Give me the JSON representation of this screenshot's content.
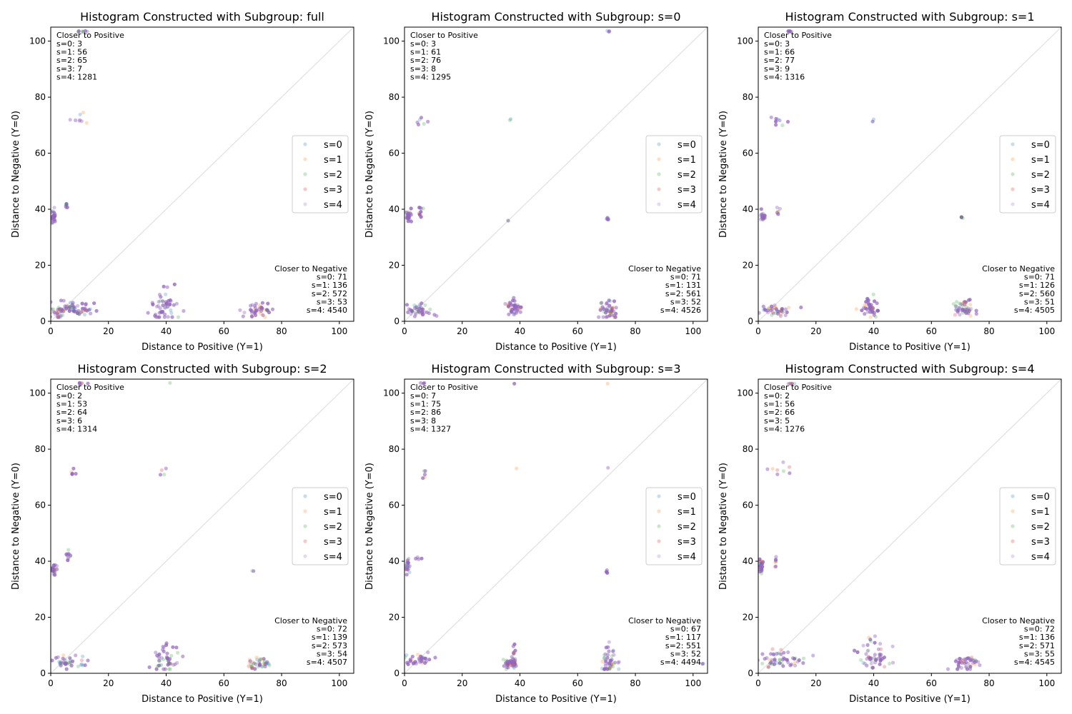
{
  "colors": {
    "s0": "#1f77b4",
    "s1": "#ff7f0e",
    "s2": "#2ca02c",
    "s3": "#d62728",
    "s4": "#9467bd",
    "diagonal": "#e0e0e0"
  },
  "chart_data": [
    {
      "type": "scatter",
      "title": "Histogram Constructed with Subgroup: full",
      "xlabel": "Distance to Positive (Y=1)",
      "ylabel": "Distance to Negative (Y=0)",
      "xlim": [
        0,
        105
      ],
      "ylim": [
        0,
        105
      ],
      "xticks": [
        0,
        20,
        40,
        60,
        80,
        100
      ],
      "yticks": [
        0,
        20,
        40,
        60,
        80,
        100
      ],
      "legend": [
        "s=0",
        "s=1",
        "s=2",
        "s=3",
        "s=4"
      ],
      "legend_position": "center-right",
      "diagonal": true,
      "closer_to_positive": {
        "heading": "Closer to Positive",
        "lines": [
          "s=0: 3",
          "s=1: 56",
          "s=2: 65",
          "s=3: 7",
          "s=4: 1281"
        ]
      },
      "closer_to_negative": {
        "heading": "Closer to Negative",
        "lines": [
          "s=0: 71",
          "s=1: 136",
          "s=2: 572",
          "s=3: 53",
          "s=4: 4540"
        ]
      },
      "clusters": [
        {
          "x": 1,
          "y": 37.5,
          "sx": 0.4,
          "sy": 1.2,
          "n": 28
        },
        {
          "x": 5.5,
          "y": 41,
          "sx": 0.2,
          "sy": 1.2,
          "n": 8
        },
        {
          "x": 9.5,
          "y": 72,
          "sx": 2,
          "sy": 1,
          "n": 8
        },
        {
          "x": 10.5,
          "y": 103.5,
          "sx": 1.5,
          "sy": 0.1,
          "n": 8
        },
        {
          "x": 8,
          "y": 4.5,
          "sx": 4,
          "sy": 1.3,
          "n": 60
        },
        {
          "x": 2,
          "y": 3,
          "sx": 1.5,
          "sy": 1,
          "n": 25
        },
        {
          "x": 39.5,
          "y": 5,
          "sx": 2.5,
          "sy": 3,
          "n": 50
        },
        {
          "x": 71.5,
          "y": 4,
          "sx": 2.5,
          "sy": 1.5,
          "n": 40
        }
      ]
    },
    {
      "type": "scatter",
      "title": "Histogram Constructed with Subgroup: s=0",
      "xlabel": "Distance to Positive (Y=1)",
      "ylabel": "Distance to Negative (Y=0)",
      "xlim": [
        0,
        105
      ],
      "ylim": [
        0,
        105
      ],
      "xticks": [
        0,
        20,
        40,
        60,
        80,
        100
      ],
      "yticks": [
        0,
        20,
        40,
        60,
        80,
        100
      ],
      "legend": [
        "s=0",
        "s=1",
        "s=2",
        "s=3",
        "s=4"
      ],
      "legend_position": "center-right",
      "diagonal": true,
      "closer_to_positive": {
        "heading": "Closer to Positive",
        "lines": [
          "s=0: 3",
          "s=1: 61",
          "s=2: 76",
          "s=3: 8",
          "s=4: 1295"
        ]
      },
      "closer_to_negative": {
        "heading": "Closer to Negative",
        "lines": [
          "s=0: 71",
          "s=1: 131",
          "s=2: 561",
          "s=3: 52",
          "s=4: 4526"
        ]
      },
      "clusters": [
        {
          "x": 1.5,
          "y": 37.5,
          "sx": 0.5,
          "sy": 1,
          "n": 25
        },
        {
          "x": 5.5,
          "y": 39.5,
          "sx": 0.5,
          "sy": 1.5,
          "n": 10
        },
        {
          "x": 6,
          "y": 71,
          "sx": 1,
          "sy": 1,
          "n": 6
        },
        {
          "x": 70.5,
          "y": 103.5,
          "sx": 0.3,
          "sy": 0.1,
          "n": 3
        },
        {
          "x": 70.5,
          "y": 36.5,
          "sx": 0.3,
          "sy": 0.3,
          "n": 6
        },
        {
          "x": 37,
          "y": 72,
          "sx": 0.3,
          "sy": 0.3,
          "n": 2
        },
        {
          "x": 36,
          "y": 36,
          "sx": 0.2,
          "sy": 0.2,
          "n": 2
        },
        {
          "x": 5,
          "y": 4,
          "sx": 2.5,
          "sy": 1.2,
          "n": 40
        },
        {
          "x": 38,
          "y": 4.5,
          "sx": 1.5,
          "sy": 1.5,
          "n": 40
        },
        {
          "x": 71,
          "y": 4.5,
          "sx": 1.5,
          "sy": 2,
          "n": 45
        }
      ]
    },
    {
      "type": "scatter",
      "title": "Histogram Constructed with Subgroup: s=1",
      "xlabel": "Distance to Positive (Y=1)",
      "ylabel": "Distance to Negative (Y=0)",
      "xlim": [
        0,
        105
      ],
      "ylim": [
        0,
        105
      ],
      "xticks": [
        0,
        20,
        40,
        60,
        80,
        100
      ],
      "yticks": [
        0,
        20,
        40,
        60,
        80,
        100
      ],
      "legend": [
        "s=0",
        "s=1",
        "s=2",
        "s=3",
        "s=4"
      ],
      "legend_position": "center-right",
      "diagonal": true,
      "closer_to_positive": {
        "heading": "Closer to Positive",
        "lines": [
          "s=0: 3",
          "s=1: 66",
          "s=2: 77",
          "s=3: 9",
          "s=4: 1316"
        ]
      },
      "closer_to_negative": {
        "heading": "Closer to Negative",
        "lines": [
          "s=0: 71",
          "s=1: 126",
          "s=2: 560",
          "s=3: 51",
          "s=4: 4505"
        ]
      },
      "clusters": [
        {
          "x": 1.5,
          "y": 37.5,
          "sx": 0.5,
          "sy": 0.8,
          "n": 20
        },
        {
          "x": 7,
          "y": 39.5,
          "sx": 0.4,
          "sy": 0.8,
          "n": 6
        },
        {
          "x": 8.5,
          "y": 71.5,
          "sx": 2,
          "sy": 1,
          "n": 8
        },
        {
          "x": 11,
          "y": 103.5,
          "sx": 1.5,
          "sy": 0.1,
          "n": 6
        },
        {
          "x": 70.5,
          "y": 37,
          "sx": 0.2,
          "sy": 0.3,
          "n": 4
        },
        {
          "x": 40,
          "y": 72,
          "sx": 0.3,
          "sy": 0.3,
          "n": 2
        },
        {
          "x": 6,
          "y": 4,
          "sx": 3,
          "sy": 1.2,
          "n": 40
        },
        {
          "x": 38.5,
          "y": 5,
          "sx": 2,
          "sy": 2,
          "n": 45
        },
        {
          "x": 71.5,
          "y": 4.5,
          "sx": 2,
          "sy": 1.5,
          "n": 45
        }
      ]
    },
    {
      "type": "scatter",
      "title": "Histogram Constructed with Subgroup: s=2",
      "xlabel": "Distance to Positive (Y=1)",
      "ylabel": "Distance to Negative (Y=0)",
      "xlim": [
        0,
        105
      ],
      "ylim": [
        0,
        105
      ],
      "xticks": [
        0,
        20,
        40,
        60,
        80,
        100
      ],
      "yticks": [
        0,
        20,
        40,
        60,
        80,
        100
      ],
      "legend": [
        "s=0",
        "s=1",
        "s=2",
        "s=3",
        "s=4"
      ],
      "legend_position": "center-right",
      "diagonal": true,
      "closer_to_positive": {
        "heading": "Closer to Positive",
        "lines": [
          "s=0: 2",
          "s=1: 53",
          "s=2: 64",
          "s=3: 6",
          "s=4: 1314"
        ]
      },
      "closer_to_negative": {
        "heading": "Closer to Negative",
        "lines": [
          "s=0: 72",
          "s=1: 139",
          "s=2: 573",
          "s=3: 54",
          "s=4: 4507"
        ]
      },
      "clusters": [
        {
          "x": 1,
          "y": 37,
          "sx": 0.4,
          "sy": 0.8,
          "n": 25
        },
        {
          "x": 6,
          "y": 42,
          "sx": 0.6,
          "sy": 1.5,
          "n": 10
        },
        {
          "x": 7.5,
          "y": 71.5,
          "sx": 0.5,
          "sy": 0.7,
          "n": 5
        },
        {
          "x": 11,
          "y": 103.5,
          "sx": 0.8,
          "sy": 0.1,
          "n": 6
        },
        {
          "x": 41.5,
          "y": 103.5,
          "sx": 0.2,
          "sy": 0.1,
          "n": 1
        },
        {
          "x": 39.5,
          "y": 72.5,
          "sx": 1,
          "sy": 1.5,
          "n": 4
        },
        {
          "x": 70,
          "y": 36.5,
          "sx": 0.2,
          "sy": 0.2,
          "n": 2
        },
        {
          "x": 6,
          "y": 4,
          "sx": 3,
          "sy": 1.2,
          "n": 40
        },
        {
          "x": 40,
          "y": 5,
          "sx": 2,
          "sy": 2.5,
          "n": 45
        },
        {
          "x": 72,
          "y": 3.5,
          "sx": 2,
          "sy": 1,
          "n": 40
        }
      ]
    },
    {
      "type": "scatter",
      "title": "Histogram Constructed with Subgroup: s=3",
      "xlabel": "Distance to Positive (Y=1)",
      "ylabel": "Distance to Negative (Y=0)",
      "xlim": [
        0,
        105
      ],
      "ylim": [
        0,
        105
      ],
      "xticks": [
        0,
        20,
        40,
        60,
        80,
        100
      ],
      "yticks": [
        0,
        20,
        40,
        60,
        80,
        100
      ],
      "legend": [
        "s=0",
        "s=1",
        "s=2",
        "s=3",
        "s=4"
      ],
      "legend_position": "center-right",
      "diagonal": true,
      "closer_to_positive": {
        "heading": "Closer to Positive",
        "lines": [
          "s=0: 7",
          "s=1: 75",
          "s=2: 86",
          "s=3: 8",
          "s=4: 1327"
        ]
      },
      "closer_to_negative": {
        "heading": "Closer to Negative",
        "lines": [
          "s=0: 67",
          "s=1: 117",
          "s=2: 551",
          "s=3: 52",
          "s=4: 4494"
        ]
      },
      "clusters": [
        {
          "x": 1,
          "y": 38.5,
          "sx": 0.4,
          "sy": 1.5,
          "n": 22
        },
        {
          "x": 4.5,
          "y": 41,
          "sx": 0.6,
          "sy": 0.2,
          "n": 4
        },
        {
          "x": 7,
          "y": 71,
          "sx": 0.3,
          "sy": 0.8,
          "n": 5
        },
        {
          "x": 6.5,
          "y": 103.5,
          "sx": 0.3,
          "sy": 0.1,
          "n": 3
        },
        {
          "x": 38,
          "y": 103.5,
          "sx": 0.2,
          "sy": 0.1,
          "n": 1
        },
        {
          "x": 70,
          "y": 103.5,
          "sx": 0.2,
          "sy": 0.1,
          "n": 1
        },
        {
          "x": 39,
          "y": 73.5,
          "sx": 0.2,
          "sy": 0.2,
          "n": 1
        },
        {
          "x": 70.5,
          "y": 73.5,
          "sx": 0.2,
          "sy": 0.2,
          "n": 1
        },
        {
          "x": 70,
          "y": 36.5,
          "sx": 0.2,
          "sy": 0.3,
          "n": 4
        },
        {
          "x": 5,
          "y": 5,
          "sx": 2.5,
          "sy": 1.2,
          "n": 35
        },
        {
          "x": 36,
          "y": 4,
          "sx": 1,
          "sy": 1,
          "n": 25
        },
        {
          "x": 38,
          "y": 6,
          "sx": 0.4,
          "sy": 2,
          "n": 20
        },
        {
          "x": 71,
          "y": 4.5,
          "sx": 1.5,
          "sy": 2.5,
          "n": 45
        },
        {
          "x": 103.5,
          "y": 3.5,
          "sx": 0.2,
          "sy": 0.5,
          "n": 2
        }
      ]
    },
    {
      "type": "scatter",
      "title": "Histogram Constructed with Subgroup: s=4",
      "xlabel": "Distance to Positive (Y=1)",
      "ylabel": "Distance to Negative (Y=0)",
      "xlim": [
        0,
        105
      ],
      "ylim": [
        0,
        105
      ],
      "xticks": [
        0,
        20,
        40,
        60,
        80,
        100
      ],
      "yticks": [
        0,
        20,
        40,
        60,
        80,
        100
      ],
      "legend": [
        "s=0",
        "s=1",
        "s=2",
        "s=3",
        "s=4"
      ],
      "legend_position": "center-right",
      "diagonal": true,
      "closer_to_positive": {
        "heading": "Closer to Positive",
        "lines": [
          "s=0: 2",
          "s=1: 56",
          "s=2: 66",
          "s=3: 5",
          "s=4: 1276"
        ]
      },
      "closer_to_negative": {
        "heading": "Closer to Negative",
        "lines": [
          "s=0: 72",
          "s=1: 136",
          "s=2: 571",
          "s=3: 55",
          "s=4: 4545"
        ]
      },
      "clusters": [
        {
          "x": 1,
          "y": 38,
          "sx": 0.4,
          "sy": 1.5,
          "n": 25
        },
        {
          "x": 6,
          "y": 40.5,
          "sx": 0.2,
          "sy": 1.3,
          "n": 6
        },
        {
          "x": 9,
          "y": 72,
          "sx": 2,
          "sy": 1,
          "n": 8
        },
        {
          "x": 11,
          "y": 103.5,
          "sx": 1,
          "sy": 0.1,
          "n": 6
        },
        {
          "x": 7,
          "y": 5,
          "sx": 4,
          "sy": 1.5,
          "n": 55
        },
        {
          "x": 40,
          "y": 6,
          "sx": 2.5,
          "sy": 3,
          "n": 50
        },
        {
          "x": 72,
          "y": 4,
          "sx": 2.5,
          "sy": 1.5,
          "n": 40
        }
      ]
    }
  ]
}
